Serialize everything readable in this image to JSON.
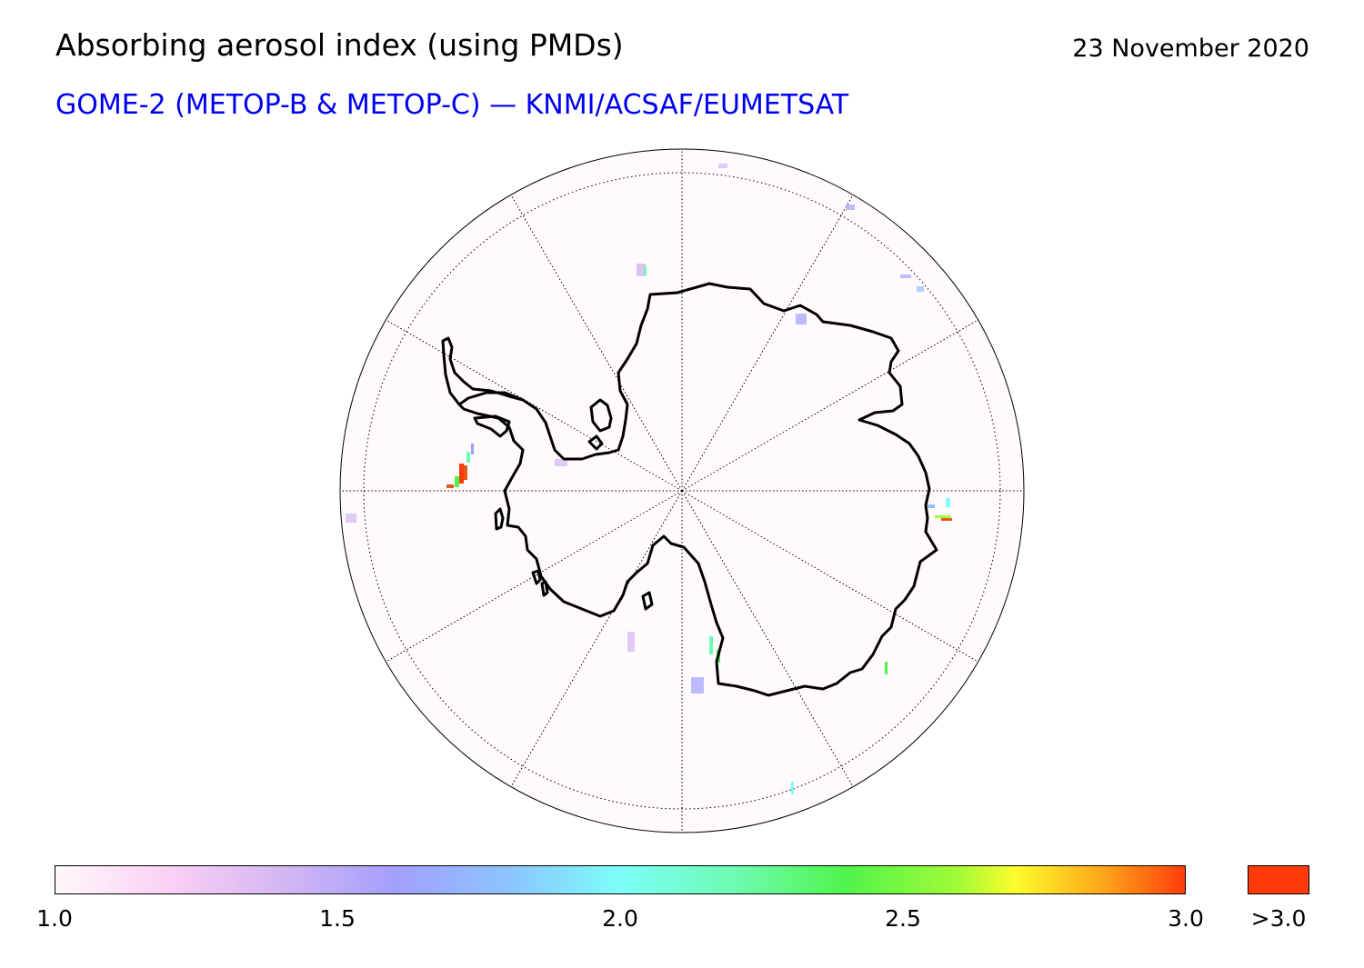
{
  "header": {
    "title": "Absorbing aerosol index (using PMDs)",
    "date": "23 November 2020",
    "subtitle": "GOME-2 (METOP-B & METOP-C) — KNMI/ACSAF/EUMETSAT"
  },
  "map": {
    "projection": "south-polar-stereographic",
    "region": "Antarctica",
    "background_color": "#fffafc",
    "coastline_color": "#000000",
    "graticule": "dotted",
    "meridians_deg": [
      0,
      30,
      60,
      90,
      120,
      150,
      180,
      210,
      240,
      270,
      300,
      330
    ],
    "data_features": [
      {
        "location": "Weddell Sea / Antarctic Peninsula",
        "index_max": 3.0,
        "color": "#ff3f0f"
      },
      {
        "location": "East Antarctic coast",
        "index_max": 2.6
      },
      {
        "location": "Ross Sea",
        "index_max": 1.9
      }
    ]
  },
  "colorbar": {
    "min": 1.0,
    "max": 3.0,
    "ticks": [
      "1.0",
      "1.5",
      "2.0",
      "2.5",
      "3.0"
    ],
    "stops": [
      {
        "value": 1.0,
        "color": "#fff8fa"
      },
      {
        "value": 1.2,
        "color": "#fad0f5"
      },
      {
        "value": 1.4,
        "color": "#d4b7f2"
      },
      {
        "value": 1.6,
        "color": "#a39ffd"
      },
      {
        "value": 1.8,
        "color": "#8cc3ff"
      },
      {
        "value": 2.0,
        "color": "#7dfdf8"
      },
      {
        "value": 2.2,
        "color": "#6efbb4"
      },
      {
        "value": 2.4,
        "color": "#4ff44b"
      },
      {
        "value": 2.6,
        "color": "#a3fb36"
      },
      {
        "value": 2.7,
        "color": "#fdfc2c"
      },
      {
        "value": 2.85,
        "color": "#fdaa1a"
      },
      {
        "value": 3.0,
        "color": "#ff3d0c"
      }
    ],
    "overflow_label": ">3.0",
    "overflow_color": "#ff3a0b"
  }
}
